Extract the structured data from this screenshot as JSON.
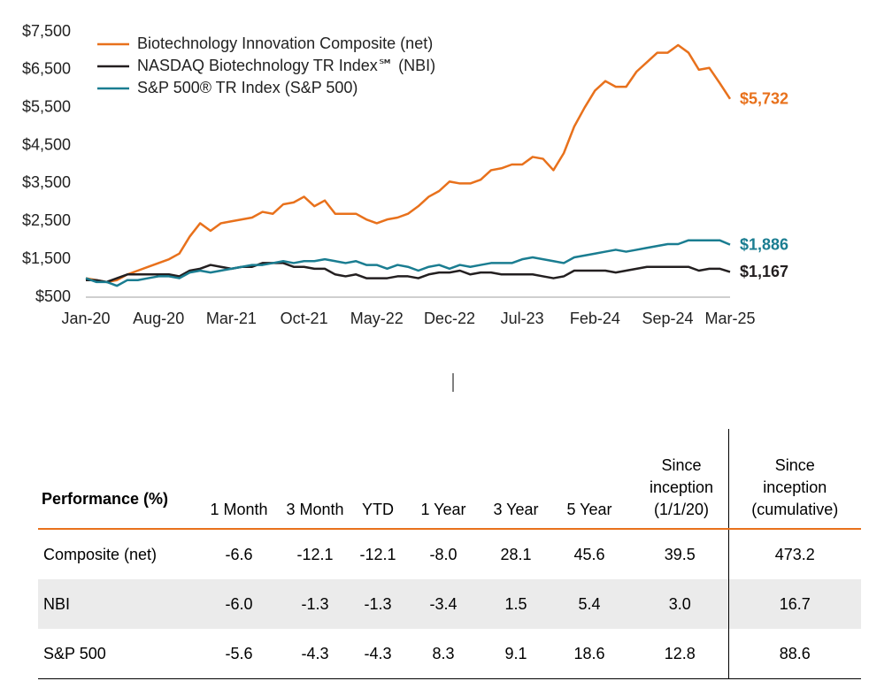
{
  "chart_data": {
    "type": "line",
    "categories": [
      "Jan-20",
      null,
      null,
      null,
      null,
      null,
      null,
      "Aug-20",
      null,
      null,
      null,
      null,
      null,
      null,
      "Mar-21",
      null,
      null,
      null,
      null,
      null,
      null,
      "Oct-21",
      null,
      null,
      null,
      null,
      null,
      null,
      "May-22",
      null,
      null,
      null,
      null,
      null,
      null,
      "Dec-22",
      null,
      null,
      null,
      null,
      null,
      null,
      "Jul-23",
      null,
      null,
      null,
      null,
      null,
      null,
      "Feb-24",
      null,
      null,
      null,
      null,
      null,
      null,
      "Sep-24",
      null,
      null,
      null,
      null,
      null,
      "Mar-25"
    ],
    "ylim": [
      500,
      7500
    ],
    "yticks": [
      {
        "value": 500,
        "label": "$500"
      },
      {
        "value": 1500,
        "label": "$1,500"
      },
      {
        "value": 2500,
        "label": "$2,500"
      },
      {
        "value": 3500,
        "label": "$3,500"
      },
      {
        "value": 4500,
        "label": "$4,500"
      },
      {
        "value": 5500,
        "label": "$5,500"
      },
      {
        "value": 6500,
        "label": "$6,500"
      },
      {
        "value": 7500,
        "label": "$7,500"
      }
    ],
    "legend": "top-left",
    "series": [
      {
        "name": "Biotechnology Innovation Composite (net)",
        "color": "#e8711c",
        "values": [
          1000,
          950,
          900,
          950,
          1100,
          1200,
          1300,
          1400,
          1500,
          1650,
          2100,
          2450,
          2250,
          2450,
          2500,
          2550,
          2600,
          2750,
          2700,
          2950,
          3000,
          3150,
          2900,
          3050,
          2700,
          2700,
          2700,
          2550,
          2450,
          2550,
          2600,
          2700,
          2900,
          3150,
          3300,
          3550,
          3500,
          3500,
          3600,
          3850,
          3900,
          4000,
          4000,
          4200,
          4150,
          3850,
          4300,
          5000,
          5500,
          5950,
          6200,
          6050,
          6050,
          6450,
          6700,
          6950,
          6950,
          7150,
          6950,
          6500,
          6550,
          6150,
          5732
        ],
        "value_labels": [
          null,
          null,
          null,
          null,
          null,
          null,
          null,
          null,
          null,
          null,
          null,
          null,
          null,
          null,
          null,
          null,
          null,
          null,
          null,
          null,
          null,
          null,
          null,
          null,
          null,
          null,
          null,
          null,
          null,
          null,
          null,
          null,
          null,
          null,
          null,
          null,
          null,
          null,
          null,
          null,
          null,
          null,
          null,
          null,
          null,
          null,
          null,
          null,
          null,
          null,
          null,
          null,
          null,
          null,
          null,
          null,
          null,
          null,
          null,
          null,
          null,
          null,
          "$5,732"
        ]
      },
      {
        "name": "NASDAQ Biotechnology TR Index℠ (NBI)",
        "color": "#231f20",
        "values": [
          950,
          950,
          900,
          1000,
          1100,
          1100,
          1100,
          1100,
          1100,
          1050,
          1200,
          1250,
          1350,
          1300,
          1250,
          1300,
          1300,
          1400,
          1400,
          1400,
          1300,
          1300,
          1250,
          1250,
          1100,
          1050,
          1100,
          1000,
          1000,
          1000,
          1050,
          1050,
          1000,
          1100,
          1150,
          1150,
          1200,
          1100,
          1150,
          1150,
          1100,
          1100,
          1100,
          1100,
          1050,
          1000,
          1050,
          1200,
          1200,
          1200,
          1200,
          1150,
          1200,
          1250,
          1300,
          1300,
          1300,
          1300,
          1300,
          1200,
          1250,
          1250,
          1167
        ],
        "value_labels": [
          null,
          null,
          null,
          null,
          null,
          null,
          null,
          null,
          null,
          null,
          null,
          null,
          null,
          null,
          null,
          null,
          null,
          null,
          null,
          null,
          null,
          null,
          null,
          null,
          null,
          null,
          null,
          null,
          null,
          null,
          null,
          null,
          null,
          null,
          null,
          null,
          null,
          null,
          null,
          null,
          null,
          null,
          null,
          null,
          null,
          null,
          null,
          null,
          null,
          null,
          null,
          null,
          null,
          null,
          null,
          null,
          null,
          null,
          null,
          null,
          null,
          null,
          "$1,167"
        ]
      },
      {
        "name": "S&P 500® TR Index (S&P 500)",
        "color": "#1a7d91",
        "values": [
          1000,
          900,
          900,
          800,
          950,
          950,
          1000,
          1050,
          1050,
          1000,
          1150,
          1200,
          1150,
          1200,
          1250,
          1300,
          1350,
          1350,
          1400,
          1450,
          1400,
          1450,
          1450,
          1500,
          1450,
          1400,
          1450,
          1350,
          1350,
          1250,
          1350,
          1300,
          1200,
          1300,
          1350,
          1250,
          1350,
          1300,
          1350,
          1400,
          1400,
          1400,
          1500,
          1550,
          1500,
          1450,
          1400,
          1550,
          1600,
          1650,
          1700,
          1750,
          1700,
          1750,
          1800,
          1850,
          1900,
          1900,
          2000,
          2000,
          2000,
          2000,
          1886
        ],
        "value_labels": [
          null,
          null,
          null,
          null,
          null,
          null,
          null,
          null,
          null,
          null,
          null,
          null,
          null,
          null,
          null,
          null,
          null,
          null,
          null,
          null,
          null,
          null,
          null,
          null,
          null,
          null,
          null,
          null,
          null,
          null,
          null,
          null,
          null,
          null,
          null,
          null,
          null,
          null,
          null,
          null,
          null,
          null,
          null,
          null,
          null,
          null,
          null,
          null,
          null,
          null,
          null,
          null,
          null,
          null,
          null,
          null,
          null,
          null,
          null,
          null,
          null,
          null,
          "$1,886"
        ]
      }
    ]
  },
  "table": {
    "header": [
      "Performance (%)",
      "1 Month",
      "3 Month",
      "YTD",
      "1 Year",
      "3 Year",
      "5 Year",
      "Since inception (1/1/20)",
      "Since inception (cumulative)"
    ],
    "rows": [
      [
        "Composite (net)",
        "-6.6",
        "-12.1",
        "-12.1",
        "-8.0",
        "28.1",
        "45.6",
        "39.5",
        "473.2"
      ],
      [
        "NBI",
        "-6.0",
        "-1.3",
        "-1.3",
        "-3.4",
        "1.5",
        "5.4",
        "3.0",
        "16.7"
      ],
      [
        "S&P 500",
        "-5.6",
        "-4.3",
        "-4.3",
        "8.3",
        "9.1",
        "18.6",
        "12.8",
        "88.6"
      ]
    ]
  }
}
